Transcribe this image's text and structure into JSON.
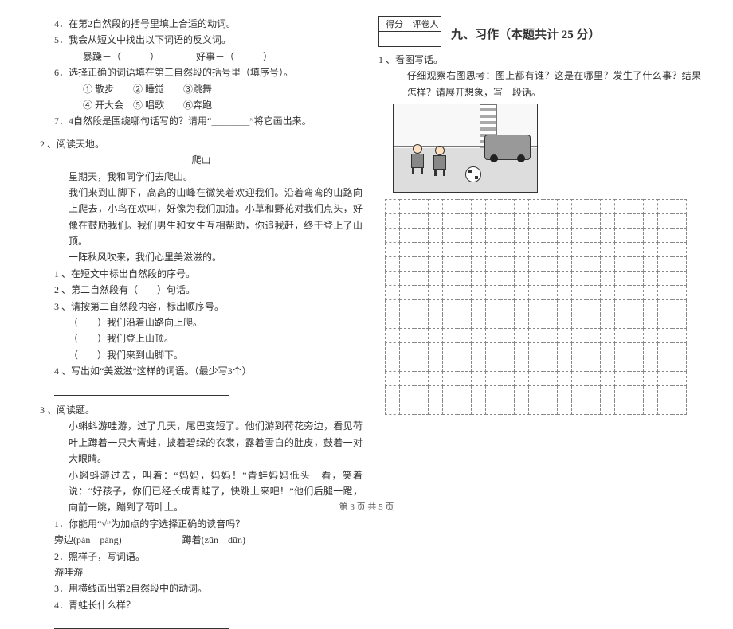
{
  "left": {
    "q4": "4．在第2自然段的括号里填上合适的动词。",
    "q5": "5．我会从短文中找出以下词语的反义词。",
    "q5_a": "暴躁－（　　　）",
    "q5_b": "好事－（　　　）",
    "q6": "6．选择正确的词语填在第三自然段的括号里（填序号）。",
    "q6_opts1": "①  散步　　②  睡觉　　③跳舞",
    "q6_opts2": "④  开大会　⑤  唱歌　　⑥奔跑",
    "q7": "7．4自然段是围绕哪句话写的？请用“＿＿＿＿”将它画出来。",
    "r2_head": "2 、阅读天地。",
    "r2_title": "爬山",
    "r2_p1": "星期天，我和同学们去爬山。",
    "r2_p2": "我们来到山脚下，高高的山峰在微笑着欢迎我们。沿着弯弯的山路向上爬去，小鸟在欢叫，好像为我们加油。小草和野花对我们点头，好像在鼓励我们。我们男生和女生互相帮助，你追我赶，终于登上了山顶。",
    "r2_p3": "一阵秋风吹来，我们心里美滋滋的。",
    "r2_q1": "1 、在短文中标出自然段的序号。",
    "r2_q2": "2 、第二自然段有（　　）句话。",
    "r2_q3": "3 、请按第二自然段内容，标出顺序号。",
    "r2_q3a": "（　　）我们沿着山路向上爬。",
    "r2_q3b": "（　　）我们登上山顶。",
    "r2_q3c": "（　　）我们来到山脚下。",
    "r2_q4": "4 、写出如“美滋滋”这样的词语。（最少写3个）",
    "r3_head": "3 、阅读题。",
    "r3_p1": "小蝌蚪游哇游，过了几天，尾巴变短了。他们游到荷花旁边，看见荷叶上蹲着一只大青蛙，披着碧绿的衣裳，露着雪白的肚皮，鼓着一对大眼睛。",
    "r3_p2": "小蝌蚪游过去，叫着：“妈妈，妈妈！”青蛙妈妈低头一看，笑着说：“好孩子，你们已经长成青蛙了，快跳上来吧！”他们后腿一蹬，向前一跳，蹦到了荷叶上。",
    "r3_q1": "1．你能用“√”为加点的字选择正确的读音吗？",
    "r3_q1a": "旁边(pán　páng)",
    "r3_q1b": "蹲着(zūn　dūn)",
    "r3_q2": "2．照样子，写词语。",
    "r3_q2a": "游哇游",
    "r3_q3": "3．用横线画出第2自然段中的动词。",
    "r3_q4": "4．青蛙长什么样？"
  },
  "right": {
    "score_h1": "得分",
    "score_h2": "评卷人",
    "section": "九、习作（本题共计 25 分）",
    "q1": "1 、看图写话。",
    "q1_desc": "仔细观察右图思考：图上都有谁？这是在哪里？发生了什么事？结果怎样？请展开想象，写一段话。"
  },
  "footer": "第 3 页 共 5 页",
  "grid": {
    "rows": 15,
    "cols": 21
  }
}
